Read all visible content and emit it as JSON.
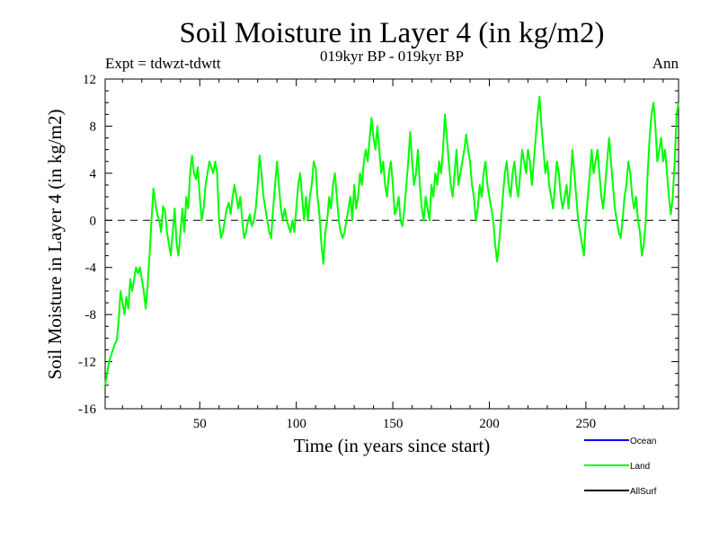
{
  "chart_data": {
    "type": "line",
    "title": "Soil Moisture in Layer 4 (in kg/m2)",
    "subtitle": "019kyr BP - 019kyr BP",
    "left_note": "Expt = tdwzt-tdwtt",
    "right_note": "Ann",
    "xlabel": "Time (in years since start)",
    "ylabel": "Soil Moisture in Layer 4 (in kg/m2)",
    "xlim": [
      1,
      298
    ],
    "ylim": [
      -16,
      12
    ],
    "xticks": [
      50,
      100,
      150,
      200,
      250
    ],
    "yticks": [
      -16,
      -12,
      -8,
      -4,
      0,
      4,
      8,
      12
    ],
    "zero_line": true,
    "legend": [
      {
        "name": "Ocean",
        "color": "#0000ff"
      },
      {
        "name": "Land",
        "color": "#00ff00"
      },
      {
        "name": "AllSurf",
        "color": "#000000"
      }
    ],
    "series": [
      {
        "name": "Land",
        "color": "#00ff00",
        "keypoints": [
          [
            1,
            -14
          ],
          [
            2,
            -13
          ],
          [
            3,
            -12
          ],
          [
            4,
            -11.5
          ],
          [
            5,
            -11
          ],
          [
            6,
            -10.5
          ],
          [
            7,
            -10.2
          ],
          [
            8,
            -8.5
          ],
          [
            9,
            -6
          ],
          [
            10,
            -7
          ],
          [
            11,
            -8
          ],
          [
            12,
            -6.5
          ],
          [
            13,
            -7.5
          ],
          [
            14,
            -5
          ],
          [
            15,
            -6
          ],
          [
            16,
            -5
          ],
          [
            17,
            -4
          ],
          [
            18,
            -4.5
          ],
          [
            19,
            -4
          ],
          [
            20,
            -5
          ],
          [
            21,
            -6
          ],
          [
            22,
            -7.5
          ],
          [
            23,
            -5.5
          ],
          [
            24,
            -3
          ],
          [
            25,
            0
          ],
          [
            26,
            2.7
          ],
          [
            27,
            1.5
          ],
          [
            28,
            0.5
          ],
          [
            29,
            0
          ],
          [
            30,
            -1
          ],
          [
            31,
            1.2
          ],
          [
            32,
            0.8
          ],
          [
            33,
            -1
          ],
          [
            34,
            -2
          ],
          [
            35,
            -3
          ],
          [
            36,
            -1
          ],
          [
            37,
            1
          ],
          [
            38,
            -2
          ],
          [
            39,
            -3
          ],
          [
            40,
            -1
          ],
          [
            41,
            1
          ],
          [
            42,
            -1
          ],
          [
            43,
            2
          ],
          [
            44,
            1
          ],
          [
            45,
            4
          ],
          [
            46,
            5.5
          ],
          [
            47,
            4
          ],
          [
            48,
            3.5
          ],
          [
            49,
            4.5
          ],
          [
            50,
            2
          ],
          [
            51,
            0
          ],
          [
            52,
            1
          ],
          [
            53,
            3
          ],
          [
            54,
            4
          ],
          [
            55,
            5
          ],
          [
            56,
            4.5
          ],
          [
            57,
            4
          ],
          [
            58,
            5
          ],
          [
            59,
            4
          ],
          [
            60,
            0
          ],
          [
            61,
            -1.5
          ],
          [
            62,
            -1
          ],
          [
            63,
            0
          ],
          [
            64,
            1
          ],
          [
            65,
            1.5
          ],
          [
            66,
            0.5
          ],
          [
            67,
            2
          ],
          [
            68,
            3
          ],
          [
            69,
            2
          ],
          [
            70,
            1
          ],
          [
            71,
            2
          ],
          [
            72,
            0
          ],
          [
            73,
            -1.5
          ],
          [
            74,
            -1
          ],
          [
            75,
            0
          ],
          [
            76,
            0.5
          ],
          [
            77,
            -0.5
          ],
          [
            78,
            0
          ],
          [
            79,
            1
          ],
          [
            80,
            3
          ],
          [
            81,
            5.5
          ],
          [
            82,
            4
          ],
          [
            83,
            2
          ],
          [
            84,
            1
          ],
          [
            85,
            0
          ],
          [
            86,
            -1
          ],
          [
            87,
            -1.5
          ],
          [
            88,
            1
          ],
          [
            89,
            3
          ],
          [
            90,
            5
          ],
          [
            91,
            3
          ],
          [
            92,
            1
          ],
          [
            93,
            0
          ],
          [
            94,
            1
          ],
          [
            95,
            0
          ],
          [
            96,
            -0.5
          ],
          [
            97,
            -1
          ],
          [
            98,
            0
          ],
          [
            99,
            -1
          ],
          [
            100,
            1
          ],
          [
            101,
            3
          ],
          [
            102,
            4
          ],
          [
            103,
            2
          ],
          [
            104,
            0
          ],
          [
            105,
            2
          ],
          [
            106,
            0
          ],
          [
            107,
            2
          ],
          [
            108,
            3
          ],
          [
            109,
            5
          ],
          [
            110,
            4.5
          ],
          [
            111,
            2
          ],
          [
            112,
            0.5
          ],
          [
            113,
            -2
          ],
          [
            114,
            -3.7
          ],
          [
            115,
            -1
          ],
          [
            116,
            0
          ],
          [
            117,
            2
          ],
          [
            118,
            1
          ],
          [
            119,
            3
          ],
          [
            120,
            4
          ],
          [
            121,
            2
          ],
          [
            122,
            0
          ],
          [
            123,
            -1
          ],
          [
            124,
            -1.5
          ],
          [
            125,
            -1
          ],
          [
            126,
            0
          ],
          [
            127,
            1
          ],
          [
            128,
            2
          ],
          [
            129,
            0
          ],
          [
            130,
            3
          ],
          [
            131,
            1
          ],
          [
            132,
            2
          ],
          [
            133,
            4
          ],
          [
            134,
            3
          ],
          [
            135,
            5
          ],
          [
            136,
            6
          ],
          [
            137,
            5
          ],
          [
            138,
            7
          ],
          [
            139,
            8.7
          ],
          [
            140,
            7
          ],
          [
            141,
            6
          ],
          [
            142,
            8
          ],
          [
            143,
            6
          ],
          [
            144,
            4
          ],
          [
            145,
            5
          ],
          [
            146,
            3
          ],
          [
            147,
            2
          ],
          [
            148,
            4
          ],
          [
            149,
            5
          ],
          [
            150,
            3
          ],
          [
            151,
            0.5
          ],
          [
            152,
            1
          ],
          [
            153,
            2
          ],
          [
            154,
            0
          ],
          [
            155,
            -0.5
          ],
          [
            156,
            1
          ],
          [
            157,
            3
          ],
          [
            158,
            5
          ],
          [
            159,
            7.5
          ],
          [
            160,
            5
          ],
          [
            161,
            3
          ],
          [
            162,
            4
          ],
          [
            163,
            6
          ],
          [
            164,
            3
          ],
          [
            165,
            1
          ],
          [
            166,
            0
          ],
          [
            167,
            2
          ],
          [
            168,
            1
          ],
          [
            169,
            0
          ],
          [
            170,
            3
          ],
          [
            171,
            2
          ],
          [
            172,
            4
          ],
          [
            173,
            3
          ],
          [
            174,
            5
          ],
          [
            175,
            4
          ],
          [
            176,
            6
          ],
          [
            177,
            9
          ],
          [
            178,
            7
          ],
          [
            179,
            5
          ],
          [
            180,
            3
          ],
          [
            181,
            2
          ],
          [
            182,
            4
          ],
          [
            183,
            6
          ],
          [
            184,
            3
          ],
          [
            185,
            4
          ],
          [
            186,
            5
          ],
          [
            187,
            6
          ],
          [
            188,
            7.3
          ],
          [
            189,
            6
          ],
          [
            190,
            5
          ],
          [
            191,
            3
          ],
          [
            192,
            2
          ],
          [
            193,
            0
          ],
          [
            194,
            1
          ],
          [
            195,
            3
          ],
          [
            196,
            2
          ],
          [
            197,
            4
          ],
          [
            198,
            5
          ],
          [
            199,
            3
          ],
          [
            200,
            2
          ],
          [
            201,
            1
          ],
          [
            202,
            0
          ],
          [
            203,
            -2
          ],
          [
            204,
            -3.5
          ],
          [
            205,
            -2
          ],
          [
            206,
            0
          ],
          [
            207,
            2
          ],
          [
            208,
            4
          ],
          [
            209,
            5
          ],
          [
            210,
            3
          ],
          [
            211,
            2
          ],
          [
            212,
            4
          ],
          [
            213,
            5
          ],
          [
            214,
            3
          ],
          [
            215,
            2
          ],
          [
            216,
            4
          ],
          [
            217,
            6
          ],
          [
            218,
            5
          ],
          [
            219,
            4
          ],
          [
            220,
            6
          ],
          [
            221,
            5
          ],
          [
            222,
            3
          ],
          [
            223,
            5
          ],
          [
            224,
            7
          ],
          [
            225,
            9
          ],
          [
            226,
            10.5
          ],
          [
            227,
            8
          ],
          [
            228,
            6
          ],
          [
            229,
            4
          ],
          [
            230,
            5
          ],
          [
            231,
            3
          ],
          [
            232,
            2
          ],
          [
            233,
            1
          ],
          [
            234,
            3
          ],
          [
            235,
            5
          ],
          [
            236,
            4
          ],
          [
            237,
            2
          ],
          [
            238,
            1
          ],
          [
            239,
            2
          ],
          [
            240,
            3
          ],
          [
            241,
            1
          ],
          [
            242,
            3
          ],
          [
            243,
            6
          ],
          [
            244,
            4
          ],
          [
            245,
            2
          ],
          [
            246,
            0
          ],
          [
            247,
            -1
          ],
          [
            248,
            -2
          ],
          [
            249,
            -3
          ],
          [
            250,
            0
          ],
          [
            251,
            2
          ],
          [
            252,
            4
          ],
          [
            253,
            6
          ],
          [
            254,
            4
          ],
          [
            255,
            5
          ],
          [
            256,
            6
          ],
          [
            257,
            4
          ],
          [
            258,
            2
          ],
          [
            259,
            1
          ],
          [
            260,
            3
          ],
          [
            261,
            5
          ],
          [
            262,
            7
          ],
          [
            263,
            5
          ],
          [
            264,
            3
          ],
          [
            265,
            1
          ],
          [
            266,
            0
          ],
          [
            267,
            -1
          ],
          [
            268,
            -1.5
          ],
          [
            269,
            0
          ],
          [
            270,
            2
          ],
          [
            271,
            3
          ],
          [
            272,
            5
          ],
          [
            273,
            4
          ],
          [
            274,
            2
          ],
          [
            275,
            1
          ],
          [
            276,
            2
          ],
          [
            277,
            0
          ],
          [
            278,
            -1
          ],
          [
            279,
            -3
          ],
          [
            280,
            -2
          ],
          [
            281,
            0
          ],
          [
            282,
            4
          ],
          [
            283,
            7
          ],
          [
            284,
            9
          ],
          [
            285,
            10
          ],
          [
            286,
            8
          ],
          [
            287,
            5
          ],
          [
            288,
            6
          ],
          [
            289,
            7
          ],
          [
            290,
            5
          ],
          [
            291,
            6
          ],
          [
            292,
            4
          ],
          [
            293,
            2
          ],
          [
            294,
            0.5
          ],
          [
            295,
            2
          ],
          [
            296,
            5
          ],
          [
            297,
            9
          ],
          [
            298,
            10
          ]
        ]
      }
    ]
  }
}
